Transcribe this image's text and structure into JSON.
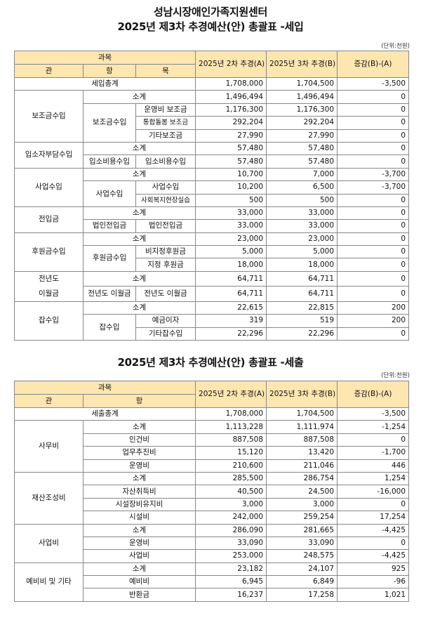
{
  "income": {
    "title_line1": "성남시장애인가족지원센터",
    "title_line2": "2025년  제3차 추경예산(안) 총괄표 -세입",
    "unit": "(단위:천원)",
    "header": {
      "subject": "과목",
      "gwan": "관",
      "hang": "항",
      "mok": "목",
      "col_a": "2025년 2차 추경(A)",
      "col_b": "2025년 3차 추경(B)",
      "col_diff": "증감(B)-(A)"
    },
    "total": {
      "label": "세입총계",
      "a": "1,708,000",
      "b": "1,704,500",
      "d": "-3,500"
    },
    "subtotal_label": "소계",
    "groups": [
      {
        "gwan": "보조금수입",
        "sub": {
          "a": "1,496,494",
          "b": "1,496,494",
          "d": "0"
        },
        "hang": [
          {
            "name": "보조금수입",
            "items": [
              {
                "mok": "운영비 보조금",
                "a": "1,176,300",
                "b": "1,176,300",
                "d": "0"
              },
              {
                "mok": "통합돌봄 보조금",
                "a": "292,204",
                "b": "292,204",
                "d": "0"
              },
              {
                "mok": "기타보조금",
                "a": "27,990",
                "b": "27,990",
                "d": "0"
              }
            ]
          }
        ]
      },
      {
        "gwan": "입소자부담수입",
        "sub": {
          "a": "57,480",
          "b": "57,480",
          "d": "0"
        },
        "hang": [
          {
            "name": "입소비용수입",
            "items": [
              {
                "mok": "입소비용수입",
                "a": "57,480",
                "b": "57,480",
                "d": "0"
              }
            ]
          }
        ]
      },
      {
        "gwan": "사업수입",
        "sub": {
          "a": "10,700",
          "b": "7,000",
          "d": "-3,700"
        },
        "hang": [
          {
            "name": "사업수입",
            "items": [
              {
                "mok": "사업수입",
                "a": "10,200",
                "b": "6,500",
                "d": "-3,700"
              },
              {
                "mok": "사회복지현장실습",
                "a": "500",
                "b": "500",
                "d": "0"
              }
            ]
          }
        ]
      },
      {
        "gwan": "전입금",
        "sub": {
          "a": "33,000",
          "b": "33,000",
          "d": "0"
        },
        "hang": [
          {
            "name": "법인전입금",
            "items": [
              {
                "mok": "법인전입금",
                "a": "33,000",
                "b": "33,000",
                "d": "0"
              }
            ]
          }
        ]
      },
      {
        "gwan": "후원금수입",
        "sub": {
          "a": "23,000",
          "b": "23,000",
          "d": "0"
        },
        "hang": [
          {
            "name": "후원금수입",
            "items": [
              {
                "mok": "비지정후원금",
                "a": "5,000",
                "b": "5,000",
                "d": "0"
              },
              {
                "mok": "지정 후원금",
                "a": "18,000",
                "b": "18,000",
                "d": "0"
              }
            ]
          }
        ]
      },
      {
        "gwan": "전년도\n이월금",
        "sub": {
          "a": "64,711",
          "b": "64,711",
          "d": "0"
        },
        "hang": [
          {
            "name": "전년도 이월금",
            "items": [
              {
                "mok": "전년도 이월금",
                "a": "64,711",
                "b": "64,711",
                "d": "0"
              }
            ]
          }
        ]
      },
      {
        "gwan": "잡수입",
        "sub": {
          "a": "22,615",
          "b": "22,815",
          "d": "200"
        },
        "hang": [
          {
            "name": "잡수입",
            "items": [
              {
                "mok": "예금이자",
                "a": "319",
                "b": "519",
                "d": "200"
              },
              {
                "mok": "기타잡수입",
                "a": "22,296",
                "b": "22,296",
                "d": "0"
              }
            ]
          }
        ]
      }
    ]
  },
  "expense": {
    "title": "2025년  제3차 추경예산(안) 총괄표 -세출",
    "unit": "(단위:천원)",
    "header": {
      "subject": "과목",
      "gwan": "관",
      "hang": "항",
      "col_a": "2025년 2차 추경(A)",
      "col_b": "2025년 3차 추경(B)",
      "col_diff": "증감(B)-(A)"
    },
    "total": {
      "label": "세출총계",
      "a": "1,708,000",
      "b": "1,704,500",
      "d": "-3,500"
    },
    "subtotal_label": "소계",
    "groups": [
      {
        "gwan": "사무비",
        "sub": {
          "a": "1,113,228",
          "b": "1,111,974",
          "d": "-1,254"
        },
        "items": [
          {
            "hang": "인건비",
            "a": "887,508",
            "b": "887,508",
            "d": "0"
          },
          {
            "hang": "업무추진비",
            "a": "15,120",
            "b": "13,420",
            "d": "-1,700"
          },
          {
            "hang": "운영비",
            "a": "210,600",
            "b": "211,046",
            "d": "446"
          }
        ]
      },
      {
        "gwan": "재산조성비",
        "sub": {
          "a": "285,500",
          "b": "286,754",
          "d": "1,254"
        },
        "items": [
          {
            "hang": "자산취득비",
            "a": "40,500",
            "b": "24,500",
            "d": "-16,000"
          },
          {
            "hang": "시설장비유지비",
            "a": "3,000",
            "b": "3,000",
            "d": "0"
          },
          {
            "hang": "시설비",
            "a": "242,000",
            "b": "259,254",
            "d": "17,254"
          }
        ]
      },
      {
        "gwan": "사업비",
        "sub": {
          "a": "286,090",
          "b": "281,665",
          "d": "-4,425"
        },
        "items": [
          {
            "hang": "운영비",
            "a": "33,090",
            "b": "33,090",
            "d": "0"
          },
          {
            "hang": "사업비",
            "a": "253,000",
            "b": "248,575",
            "d": "-4,425"
          }
        ]
      },
      {
        "gwan": "예비비 및 기타",
        "sub": {
          "a": "23,182",
          "b": "24,107",
          "d": "925"
        },
        "items": [
          {
            "hang": "예비비",
            "a": "6,945",
            "b": "6,849",
            "d": "-96"
          },
          {
            "hang": "반환금",
            "a": "16,237",
            "b": "17,258",
            "d": "1,021"
          }
        ]
      }
    ]
  }
}
